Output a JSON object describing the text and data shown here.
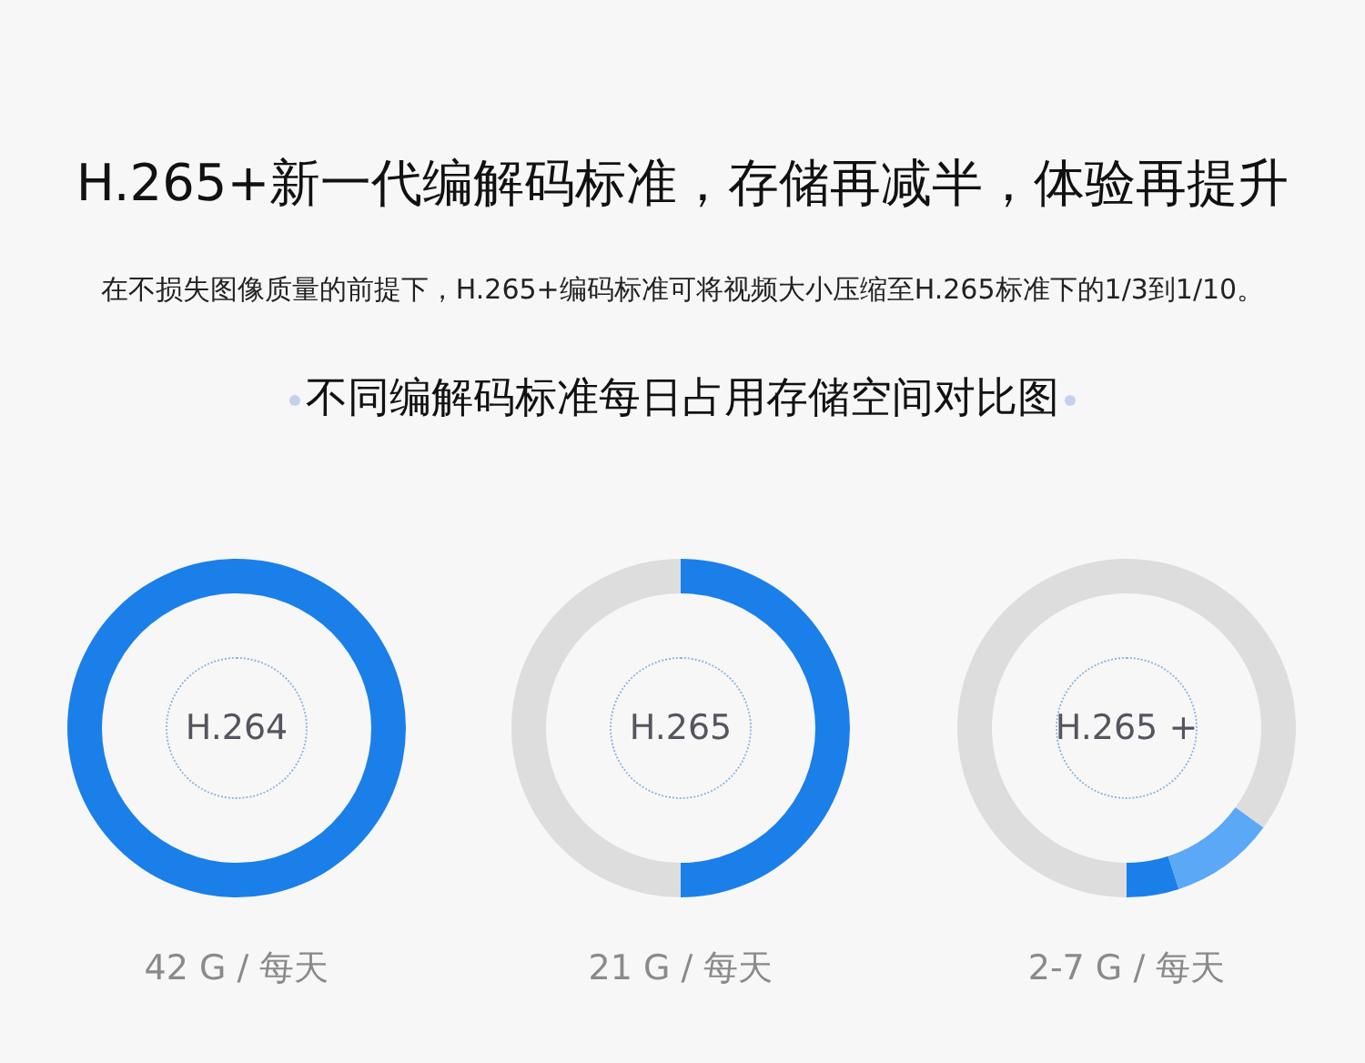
{
  "chart_data": [
    {
      "type": "other",
      "title": "H.265+新一代编解码标准，存储再减半，体验再提升",
      "subtitle": "在不损失图像质量的前提下，H.265+编码标准可将视频大小压缩至H.265标准下的1/3到1/10。",
      "annotations": [
        "不同编解码标准每日占用存储空间对比图"
      ]
    },
    {
      "type": "donut",
      "title": "H.264",
      "categories": [
        null
      ],
      "values": [
        100
      ],
      "colors": [
        "#1b7fe9"
      ],
      "annotations": [
        "42 G / 每天"
      ]
    },
    {
      "type": "donut",
      "title": "H.265",
      "categories": [
        null,
        null
      ],
      "values": [
        50,
        50
      ],
      "colors": [
        "#1b7fe9",
        "#dddddd"
      ],
      "annotations": [
        "21 G / 每天"
      ]
    },
    {
      "type": "donut",
      "title": "H.265 +",
      "categories": [
        null,
        null,
        null
      ],
      "values": [
        5,
        10,
        85
      ],
      "colors": [
        "#1b7fe9",
        "#5ba8f6",
        "#dddddd"
      ],
      "annotations": [
        "2-7 G / 每天"
      ]
    }
  ]
}
